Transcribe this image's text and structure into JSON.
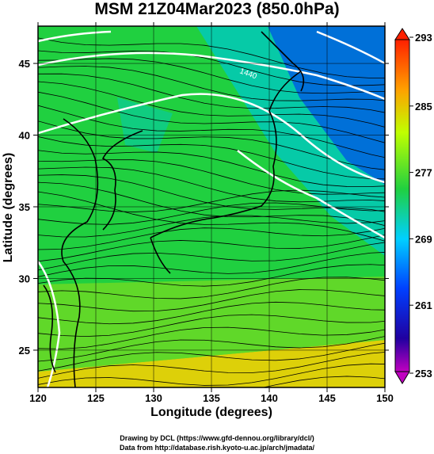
{
  "chart_data": {
    "type": "heatmap",
    "title": "MSM 21Z04Mar2023 (850.0hPa)",
    "xlabel": "Longitude (degrees)",
    "ylabel": "Latitude  (degrees)",
    "xlim": [
      120,
      150
    ],
    "ylim": [
      22.4,
      47.6
    ],
    "x_ticks": [
      "120",
      "125",
      "130",
      "135",
      "140",
      "145",
      "150"
    ],
    "y_ticks": [
      "25",
      "30",
      "35",
      "40",
      "45"
    ],
    "grid": true,
    "colorbar": {
      "min": 253,
      "max": 293,
      "ticks": [
        "293",
        "285",
        "277",
        "269",
        "261",
        "253"
      ]
    },
    "contour_label": "1440",
    "overlay": "streamlines"
  },
  "credits": {
    "line1": "Drawing by DCL (https://www.gfd-dennou.org/library/dcl/)",
    "line2": "Data from http://database.rish.kyoto-u.ac.jp/arch/jmadata/"
  },
  "colors": {
    "warm": "#ffd000",
    "mild": "#7cdc20",
    "mid": "#20d040",
    "cool": "#00c8c0",
    "cold": "#0060e0",
    "contour": "#ffffff",
    "coast": "#000000"
  }
}
